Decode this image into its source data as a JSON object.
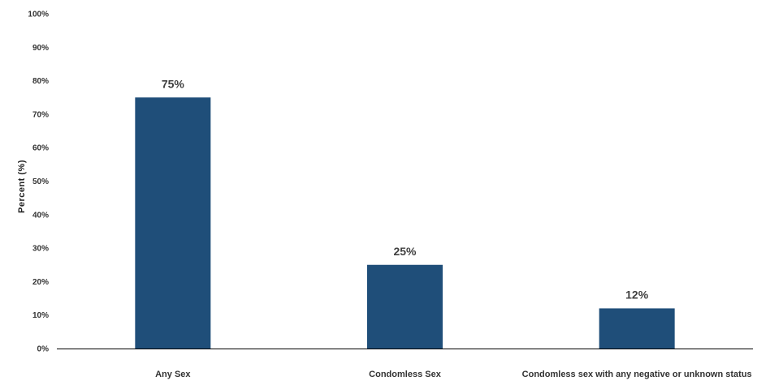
{
  "chart_data": {
    "type": "bar",
    "title": "",
    "xlabel": "",
    "ylabel": "Percent (%)",
    "categories": [
      "Any Sex",
      "Condomless Sex",
      "Condomless sex with any negative or unknown status"
    ],
    "values": [
      75,
      25,
      12
    ],
    "data_labels": [
      "75%",
      "25%",
      "12%"
    ],
    "ylim": [
      0,
      100
    ],
    "yticks": [
      0,
      10,
      20,
      30,
      40,
      50,
      60,
      70,
      80,
      90,
      100
    ],
    "ytick_labels": [
      "0%",
      "10%",
      "20%",
      "30%",
      "40%",
      "50%",
      "60%",
      "70%",
      "80%",
      "90%",
      "100%"
    ],
    "grid": false,
    "legend": "none",
    "bar_color": "#1f4e79"
  }
}
